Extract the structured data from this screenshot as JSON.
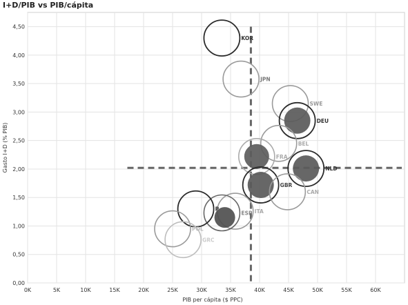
{
  "chart_data": {
    "type": "scatter",
    "title": "I+D/PIB vs PIB/cápita",
    "xlabel": "PIB per cápita ($ PPC)",
    "ylabel": "Gasto I+D (% PIB)",
    "xlim": [
      0,
      65000
    ],
    "ylim": [
      0,
      4.75
    ],
    "x_ticks": [
      0,
      5000,
      10000,
      15000,
      20000,
      25000,
      30000,
      35000,
      40000,
      45000,
      50000,
      55000,
      60000
    ],
    "x_tick_labels": [
      "0K",
      "5K",
      "10K",
      "15K",
      "20K",
      "25K",
      "30K",
      "35K",
      "40K",
      "45K",
      "50K",
      "55K",
      "60K"
    ],
    "y_ticks": [
      0,
      0.5,
      1.0,
      1.5,
      2.0,
      2.5,
      3.0,
      3.5,
      4.0,
      4.5
    ],
    "y_tick_labels": [
      "0,00",
      "0,50",
      "1,00",
      "1,50",
      "2,00",
      "2,50",
      "3,00",
      "3,50",
      "4,00",
      "4,50"
    ],
    "grid": true,
    "reference_lines": {
      "x": 38500,
      "y": 2.02
    },
    "points": [
      {
        "label": "KOR",
        "x": 33500,
        "y": 4.3,
        "style": "outline-dark",
        "label_color": "#333333"
      },
      {
        "label": "JPN",
        "x": 36800,
        "y": 3.58,
        "style": "outline-light",
        "label_color": "#777777"
      },
      {
        "label": "SWE",
        "x": 45300,
        "y": 3.15,
        "style": "outline-light",
        "label_color": "#999999"
      },
      {
        "label": "DEU",
        "x": 46500,
        "y": 2.85,
        "style": "filled-dark",
        "label_color": "#333333"
      },
      {
        "label": "BEL",
        "x": 43300,
        "y": 2.45,
        "style": "outline-light",
        "label_color": "#aaaaaa"
      },
      {
        "label": "FRA",
        "x": 39500,
        "y": 2.22,
        "style": "filled-light",
        "label_color": "#aaaaaa"
      },
      {
        "label": "NLD",
        "x": 48000,
        "y": 2.01,
        "style": "filled-dark",
        "label_color": "#333333"
      },
      {
        "label": "GBR",
        "x": 40200,
        "y": 1.72,
        "style": "filled-dark",
        "label_color": "#444444"
      },
      {
        "label": "CAN",
        "x": 44800,
        "y": 1.6,
        "style": "outline-light",
        "label_color": "#aaaaaa"
      },
      {
        "label": "ITA",
        "x": 35800,
        "y": 1.26,
        "style": "outline-light",
        "label_color": "#aaaaaa"
      },
      {
        "label": "ESP",
        "x": 33500,
        "y": 1.23,
        "style": "outline-medium",
        "label_color": "#888888"
      },
      {
        "label": "P",
        "x": 29000,
        "y": 1.3,
        "style": "outline-dark",
        "label_color": "#333333"
      },
      {
        "label": "",
        "x": 34000,
        "y": 1.15,
        "style": "filled-dark-small",
        "label_color": "#333333"
      },
      {
        "label": "POL",
        "x": 25000,
        "y": 0.95,
        "style": "outline-light",
        "label_color": "#bbbbbb"
      },
      {
        "label": "GRC",
        "x": 26800,
        "y": 0.76,
        "style": "outline-faint",
        "label_color": "#cccccc"
      }
    ]
  }
}
